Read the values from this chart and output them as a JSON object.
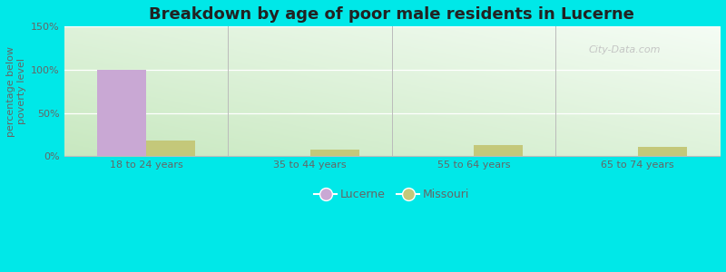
{
  "title": "Breakdown by age of poor male residents in Lucerne",
  "ylabel": "percentage below\npoverty level",
  "categories": [
    "18 to 24 years",
    "35 to 44 years",
    "55 to 64 years",
    "65 to 74 years"
  ],
  "lucerne_values": [
    100,
    0,
    0,
    0
  ],
  "missouri_values": [
    18,
    8,
    13,
    11
  ],
  "lucerne_color": "#c9a8d4",
  "missouri_color": "#c4c87a",
  "ylim": [
    0,
    150
  ],
  "yticks": [
    0,
    50,
    100,
    150
  ],
  "ytick_labels": [
    "0%",
    "50%",
    "100%",
    "150%"
  ],
  "bg_top_left": "#c8e8c0",
  "bg_top_right": "#e8f8f0",
  "bg_bottom_left": "#d0ecc8",
  "bg_bottom_right": "#f0faf4",
  "outer_background": "#00e8e8",
  "bar_width": 0.3,
  "title_fontsize": 13,
  "axis_label_fontsize": 8,
  "tick_fontsize": 8,
  "legend_fontsize": 9,
  "watermark_text": "City-Data.com",
  "watermark_color": "#c0c0c0",
  "grid_color": "#e0eedc",
  "spine_color": "#bbbbbb",
  "text_color": "#666666"
}
